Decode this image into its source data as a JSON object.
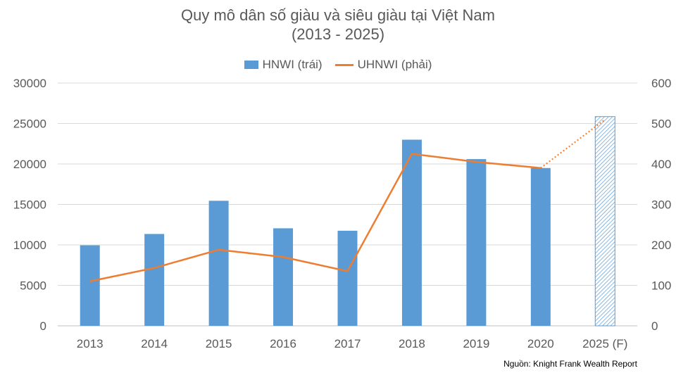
{
  "chart_data": {
    "type": "bar",
    "title_line1": "Quy mô dân số giàu và siêu giàu tại Việt Nam",
    "title_line2": "(2013 - 2025)",
    "categories": [
      "2013",
      "2014",
      "2015",
      "2016",
      "2017",
      "2018",
      "2019",
      "2020",
      "2025 (F)"
    ],
    "series": [
      {
        "name": "HNWI (trái)",
        "type": "bar",
        "axis": "left",
        "values": [
          9950,
          11350,
          15450,
          12050,
          11750,
          23000,
          20600,
          19500,
          25850
        ],
        "forecast_index": 8,
        "color": "#5b9bd5"
      },
      {
        "name": "UHNWI (phải)",
        "type": "line",
        "axis": "right",
        "values": [
          110,
          143,
          188,
          170,
          135,
          425,
          405,
          390,
          510
        ],
        "forecast_index": 8,
        "color": "#ed7d31"
      }
    ],
    "y_left": {
      "min": 0,
      "max": 30000,
      "ticks": [
        0,
        5000,
        10000,
        15000,
        20000,
        25000,
        30000
      ]
    },
    "y_right": {
      "min": 0,
      "max": 600,
      "ticks": [
        0,
        100,
        200,
        300,
        400,
        500,
        600
      ]
    },
    "grid": true,
    "legend_position": "top",
    "source": "Nguồn: Knight Frank Wealth Report"
  }
}
